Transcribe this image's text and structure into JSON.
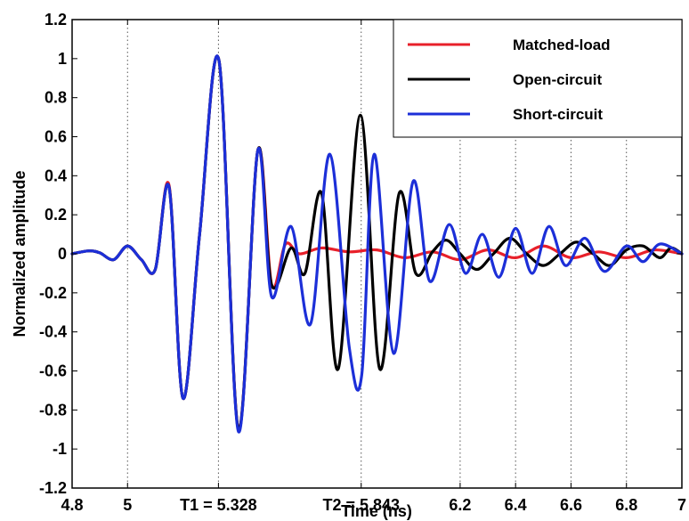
{
  "chart_data": {
    "type": "line",
    "title": "",
    "xlabel": "Time (ns)",
    "ylabel": "Normalized amplitude",
    "xlim": [
      4.8,
      7.0
    ],
    "ylim": [
      -1.2,
      1.2
    ],
    "grid": "vertical dotted lines at x tick positions",
    "legend_position": "top-right",
    "x_ticks": [
      {
        "value": 4.8,
        "label": "4.8"
      },
      {
        "value": 5.0,
        "label": "5"
      },
      {
        "value": 5.328,
        "label": "T1 = 5.328"
      },
      {
        "value": 5.843,
        "label": "T2 = 5.843"
      },
      {
        "value": 6.2,
        "label": "6.2"
      },
      {
        "value": 6.4,
        "label": "6.4"
      },
      {
        "value": 6.6,
        "label": "6.6"
      },
      {
        "value": 6.8,
        "label": "6.8"
      },
      {
        "value": 7.0,
        "label": "7"
      }
    ],
    "y_ticks": [
      {
        "value": 1.2,
        "label": "1.2"
      },
      {
        "value": 1.0,
        "label": "1"
      },
      {
        "value": 0.8,
        "label": "0.8"
      },
      {
        "value": 0.6,
        "label": "0.6"
      },
      {
        "value": 0.4,
        "label": "0.4"
      },
      {
        "value": 0.2,
        "label": "0.2"
      },
      {
        "value": 0.0,
        "label": "0"
      },
      {
        "value": -0.2,
        "label": "-0.2"
      },
      {
        "value": -0.4,
        "label": "-0.4"
      },
      {
        "value": -0.6,
        "label": "-0.6"
      },
      {
        "value": -0.8,
        "label": "-0.8"
      },
      {
        "value": -1.0,
        "label": "-1"
      },
      {
        "value": -1.2,
        "label": "-1.2"
      }
    ],
    "series": [
      {
        "name": "Matched-load",
        "color": "#e8202a",
        "points": [
          [
            4.8,
            0
          ],
          [
            4.86,
            0.015
          ],
          [
            4.9,
            0.005
          ],
          [
            4.95,
            -0.03
          ],
          [
            5.0,
            0.04
          ],
          [
            5.05,
            -0.03
          ],
          [
            5.1,
            -0.08
          ],
          [
            5.15,
            0.35
          ],
          [
            5.2,
            -0.74
          ],
          [
            5.26,
            0.1
          ],
          [
            5.33,
            0.99
          ],
          [
            5.4,
            -0.9
          ],
          [
            5.47,
            0.53
          ],
          [
            5.52,
            -0.16
          ],
          [
            5.57,
            0.05
          ],
          [
            5.62,
            0.0
          ],
          [
            5.7,
            0.03
          ],
          [
            5.8,
            0.01
          ],
          [
            5.9,
            0.02
          ],
          [
            6.0,
            -0.02
          ],
          [
            6.1,
            0.01
          ],
          [
            6.2,
            -0.03
          ],
          [
            6.3,
            0.02
          ],
          [
            6.4,
            -0.02
          ],
          [
            6.5,
            0.04
          ],
          [
            6.6,
            -0.02
          ],
          [
            6.7,
            0.01
          ],
          [
            6.8,
            -0.02
          ],
          [
            6.9,
            0.02
          ],
          [
            7.0,
            0.0
          ]
        ]
      },
      {
        "name": "Open-circuit",
        "color": "#000000",
        "points": [
          [
            4.8,
            0
          ],
          [
            4.86,
            0.015
          ],
          [
            4.9,
            0.005
          ],
          [
            4.95,
            -0.03
          ],
          [
            5.0,
            0.04
          ],
          [
            5.05,
            -0.03
          ],
          [
            5.1,
            -0.08
          ],
          [
            5.15,
            0.34
          ],
          [
            5.2,
            -0.74
          ],
          [
            5.26,
            0.1
          ],
          [
            5.33,
            0.99
          ],
          [
            5.4,
            -0.9
          ],
          [
            5.47,
            0.53
          ],
          [
            5.52,
            -0.16
          ],
          [
            5.59,
            0.03
          ],
          [
            5.64,
            -0.1
          ],
          [
            5.7,
            0.31
          ],
          [
            5.76,
            -0.59
          ],
          [
            5.84,
            0.71
          ],
          [
            5.91,
            -0.59
          ],
          [
            5.98,
            0.31
          ],
          [
            6.04,
            -0.1
          ],
          [
            6.1,
            0.01
          ],
          [
            6.15,
            0.07
          ],
          [
            6.2,
            0.0
          ],
          [
            6.26,
            -0.08
          ],
          [
            6.32,
            0.0
          ],
          [
            6.38,
            0.08
          ],
          [
            6.44,
            0.0
          ],
          [
            6.5,
            -0.06
          ],
          [
            6.56,
            0.0
          ],
          [
            6.62,
            0.06
          ],
          [
            6.68,
            0.0
          ],
          [
            6.74,
            -0.06
          ],
          [
            6.8,
            0.02
          ],
          [
            6.86,
            0.04
          ],
          [
            6.92,
            -0.02
          ],
          [
            6.96,
            0.03
          ],
          [
            7.0,
            0.0
          ]
        ]
      },
      {
        "name": "Short-circuit",
        "color": "#1c2fd8",
        "points": [
          [
            4.8,
            0
          ],
          [
            4.86,
            0.015
          ],
          [
            4.9,
            0.005
          ],
          [
            4.95,
            -0.03
          ],
          [
            5.0,
            0.04
          ],
          [
            5.05,
            -0.03
          ],
          [
            5.1,
            -0.08
          ],
          [
            5.15,
            0.34
          ],
          [
            5.2,
            -0.74
          ],
          [
            5.26,
            0.1
          ],
          [
            5.33,
            0.99
          ],
          [
            5.4,
            -0.91
          ],
          [
            5.47,
            0.53
          ],
          [
            5.52,
            -0.22
          ],
          [
            5.59,
            0.14
          ],
          [
            5.66,
            -0.36
          ],
          [
            5.73,
            0.51
          ],
          [
            5.8,
            -0.48
          ],
          [
            5.845,
            -0.62
          ],
          [
            5.89,
            0.51
          ],
          [
            5.96,
            -0.51
          ],
          [
            6.03,
            0.37
          ],
          [
            6.09,
            -0.14
          ],
          [
            6.16,
            0.15
          ],
          [
            6.22,
            -0.1
          ],
          [
            6.28,
            0.1
          ],
          [
            6.34,
            -0.12
          ],
          [
            6.4,
            0.13
          ],
          [
            6.46,
            -0.1
          ],
          [
            6.52,
            0.14
          ],
          [
            6.58,
            -0.06
          ],
          [
            6.65,
            0.08
          ],
          [
            6.72,
            -0.09
          ],
          [
            6.8,
            0.04
          ],
          [
            6.86,
            -0.04
          ],
          [
            6.92,
            0.05
          ],
          [
            7.0,
            0.0
          ]
        ]
      }
    ]
  }
}
